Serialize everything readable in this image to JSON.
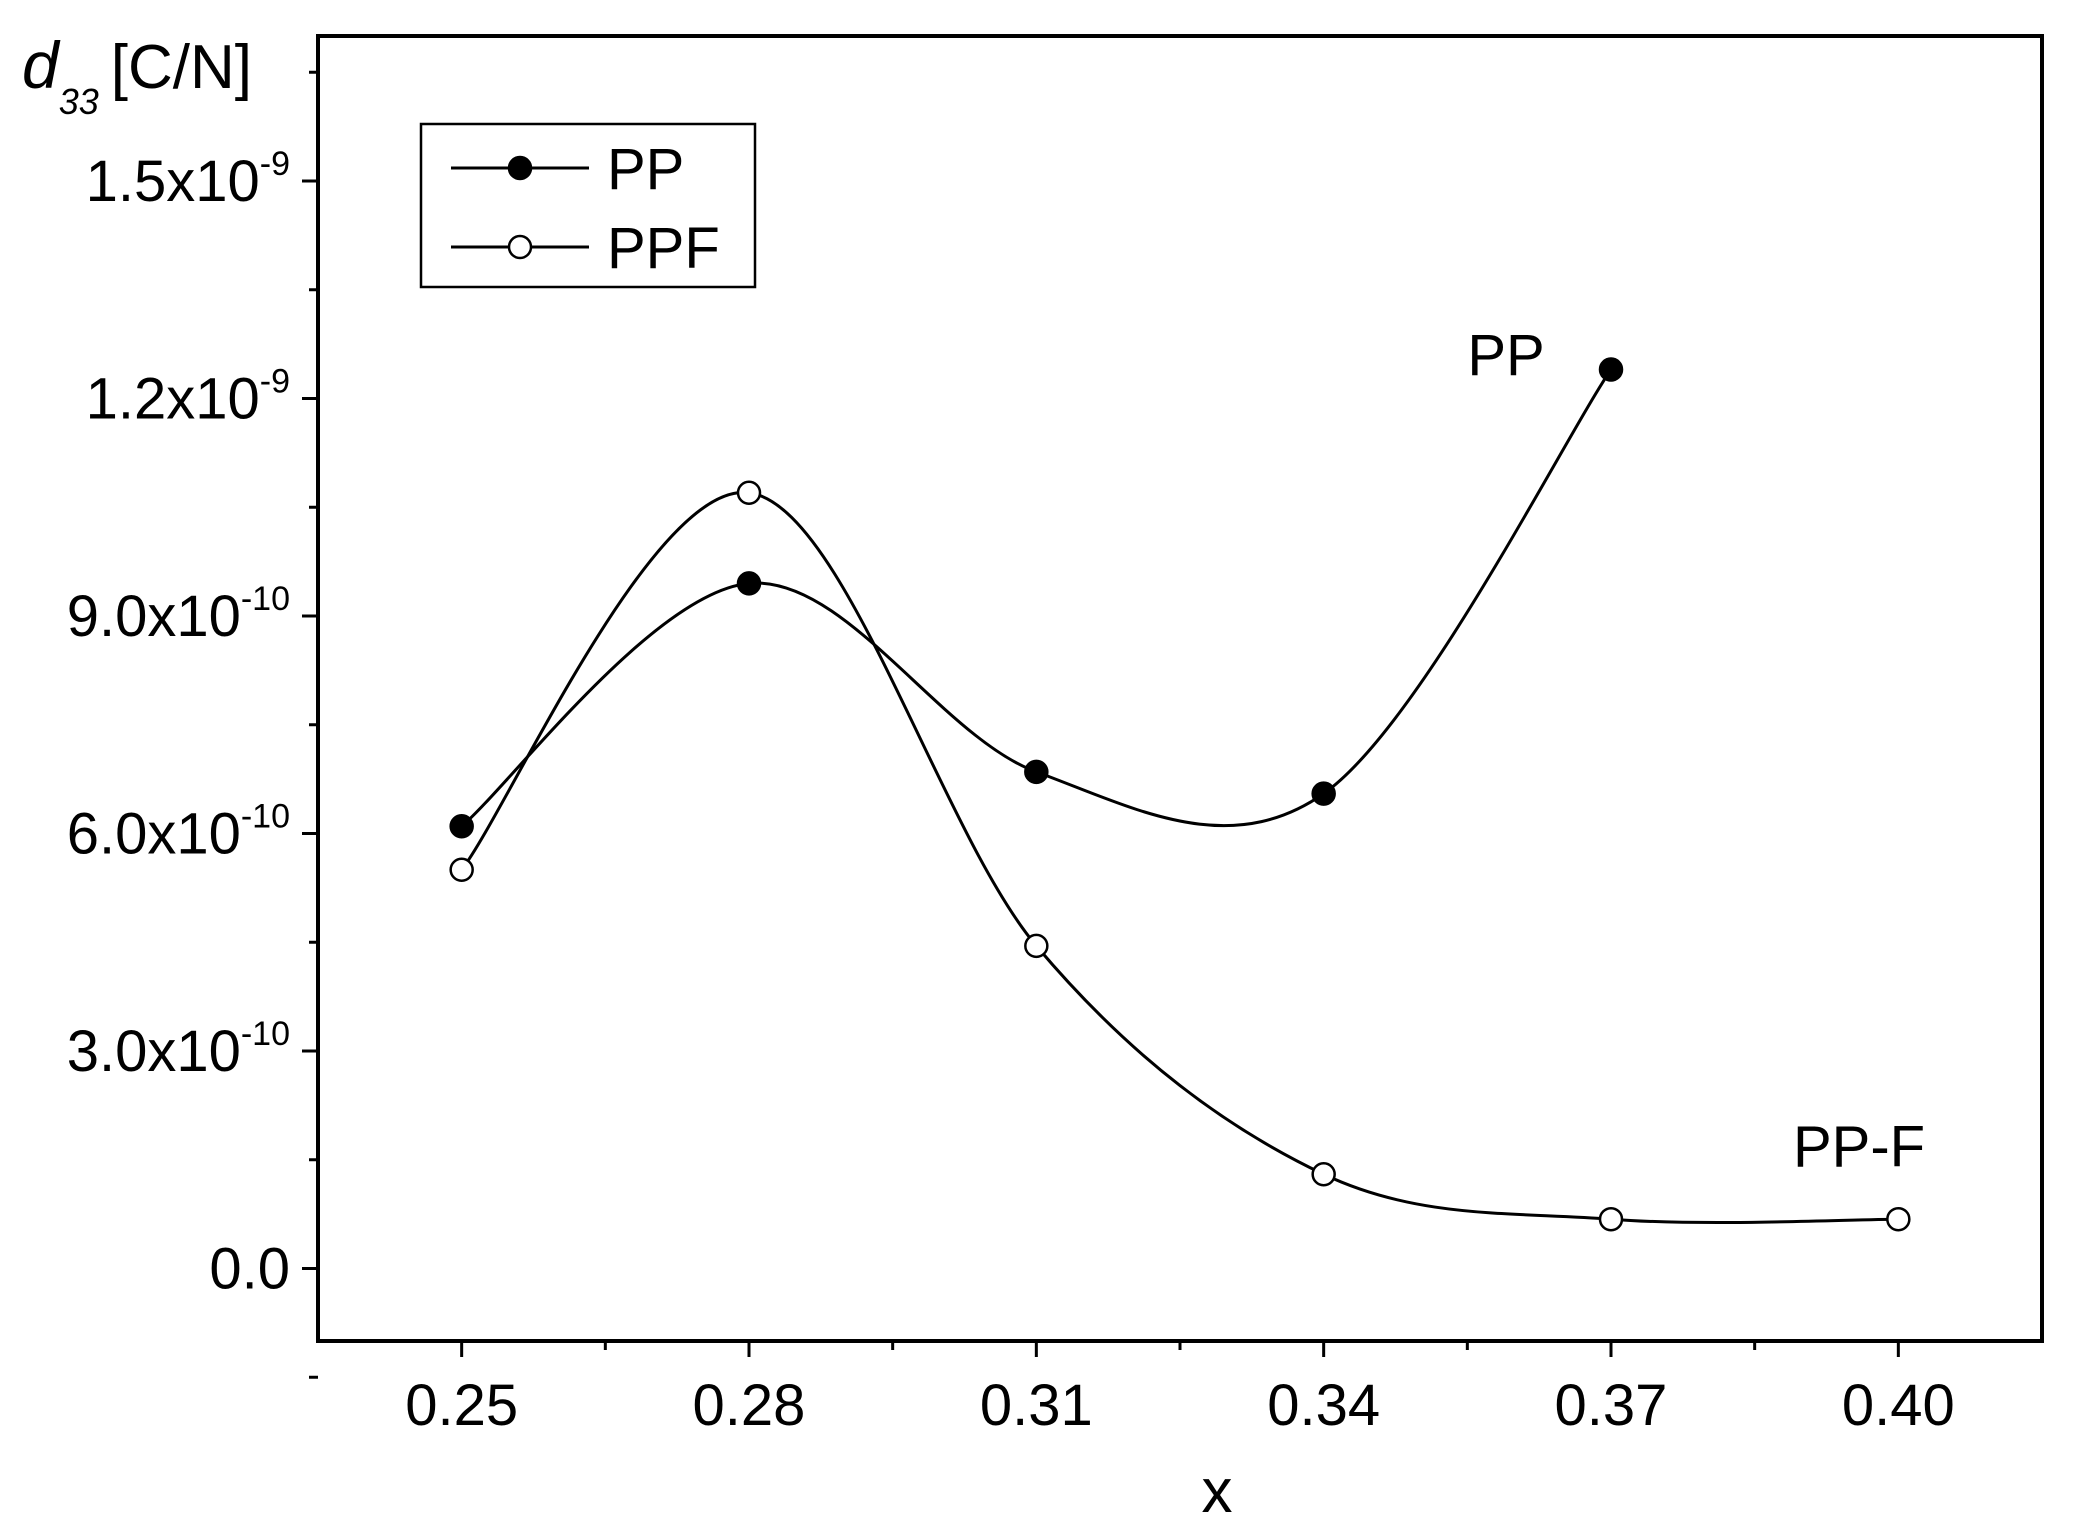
{
  "chart_data": {
    "type": "line",
    "title": "",
    "xlabel": "x",
    "ylabel_main": "d",
    "ylabel_sub": "33",
    "ylabel_unit": "[C/N]",
    "x": [
      0.25,
      0.28,
      0.31,
      0.34,
      0.37,
      0.4
    ],
    "x_tick_labels": [
      "0.25",
      "0.28",
      "0.31",
      "0.34",
      "0.37",
      "0.40"
    ],
    "xlim": [
      0.235,
      0.415
    ],
    "ylim": [
      -1e-10,
      1.7e-09
    ],
    "y_ticks": [
      {
        "value": 0.0,
        "mantissa": "0.0",
        "exponent": ""
      },
      {
        "value": 3e-10,
        "mantissa": "3.0x10",
        "exponent": "-10"
      },
      {
        "value": 6e-10,
        "mantissa": "6.0x10",
        "exponent": "-10"
      },
      {
        "value": 9e-10,
        "mantissa": "9.0x10",
        "exponent": "-10"
      },
      {
        "value": 1.2e-09,
        "mantissa": "1.2x10",
        "exponent": "-9"
      },
      {
        "value": 1.5e-09,
        "mantissa": "1.5x10",
        "exponent": "-9"
      }
    ],
    "series": [
      {
        "name": "PP",
        "marker": "filled-circle",
        "x": [
          0.25,
          0.28,
          0.31,
          0.34,
          0.37
        ],
        "values": [
          6.1e-10,
          9.45e-10,
          6.85e-10,
          6.55e-10,
          1.24e-09
        ]
      },
      {
        "name": "PPF",
        "marker": "open-circle",
        "x": [
          0.25,
          0.28,
          0.31,
          0.34,
          0.37,
          0.4
        ],
        "values": [
          5.5e-10,
          1.07e-09,
          4.45e-10,
          1.3e-10,
          6.8e-11,
          6.8e-11
        ]
      }
    ],
    "legend": {
      "position": "top-left",
      "entries": [
        "PP",
        "PPF"
      ]
    },
    "annotations": [
      {
        "text": "PP",
        "x": 0.355,
        "y": 1.26e-09
      },
      {
        "text": "PP-F",
        "x": 0.389,
        "y": 1.68e-10
      }
    ],
    "grid": false
  }
}
